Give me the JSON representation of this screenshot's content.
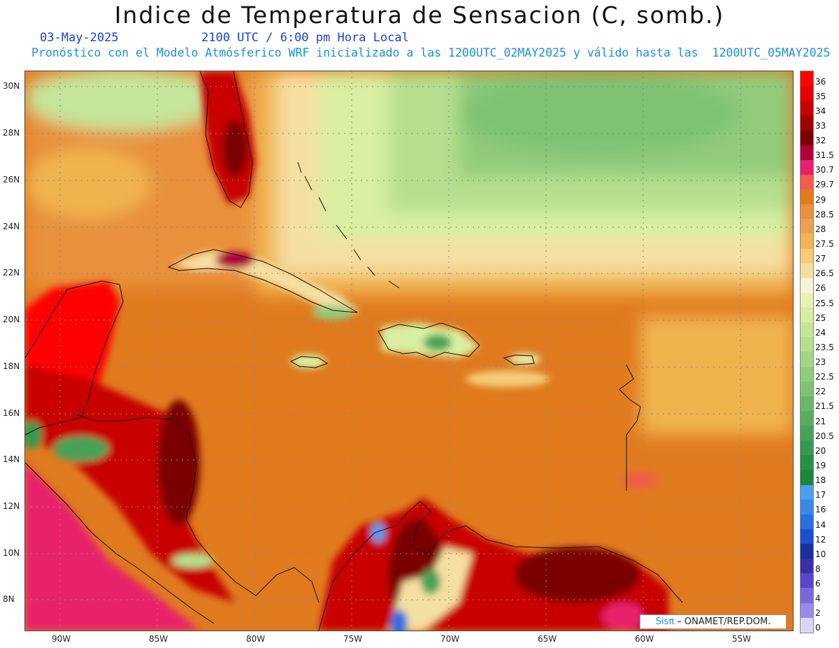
{
  "header": {
    "title": "Indice de Temperatura de Sensacion (C, somb.)",
    "date": "03-May-2025",
    "time": "2100 UTC / 6:00 pm Hora Local",
    "forecast": "Pronóstico con el Modelo Atmósferico WRF inicializado a las 1200UTC_02MAY2025 y válido hasta las  1200UTC_05MAY2025"
  },
  "axes": {
    "lat_labels": [
      "30N",
      "28N",
      "26N",
      "24N",
      "22N",
      "20N",
      "18N",
      "16N",
      "14N",
      "12N",
      "10N",
      "8N"
    ],
    "lon_labels": [
      "90W",
      "85W",
      "80W",
      "75W",
      "70W",
      "65W",
      "60W",
      "55W"
    ]
  },
  "legend": {
    "labels": [
      "36",
      "35",
      "34",
      "33",
      "32",
      "31.5",
      "30.7",
      "29.7",
      "29",
      "28.5",
      "28",
      "27.5",
      "27",
      "26.5",
      "26",
      "25.5",
      "25",
      "24",
      "23.5",
      "23",
      "22.5",
      "22",
      "21.5",
      "21",
      "20.5",
      "20",
      "19",
      "18",
      "17",
      "16",
      "14",
      "12",
      "10",
      "8",
      "6",
      "4",
      "2",
      "0"
    ],
    "colors": [
      "#ff0000",
      "#e60000",
      "#c80000",
      "#a00000",
      "#7a0000",
      "#b0003a",
      "#e8206a",
      "#f25c4a",
      "#e07a1f",
      "#e8903a",
      "#eba050",
      "#f0b450",
      "#f5cc78",
      "#f5dfa0",
      "#f7f2d8",
      "#e6f2b0",
      "#d8eea0",
      "#c5e69a",
      "#b5df8e",
      "#a3d586",
      "#91cc7c",
      "#7ec273",
      "#6bb86a",
      "#58ad61",
      "#46a358",
      "#359a50",
      "#269046",
      "#1a853c",
      "#4a9ff0",
      "#3a88e8",
      "#2a6ee0",
      "#1a4fcf",
      "#1a2f9a",
      "#3a2faa",
      "#5a46c8",
      "#7a6ad8",
      "#9a8ae8",
      "#d8d8f5"
    ]
  },
  "credit": {
    "brand": "Sisπ",
    "text": " – ONAMET/REP.DOM."
  }
}
